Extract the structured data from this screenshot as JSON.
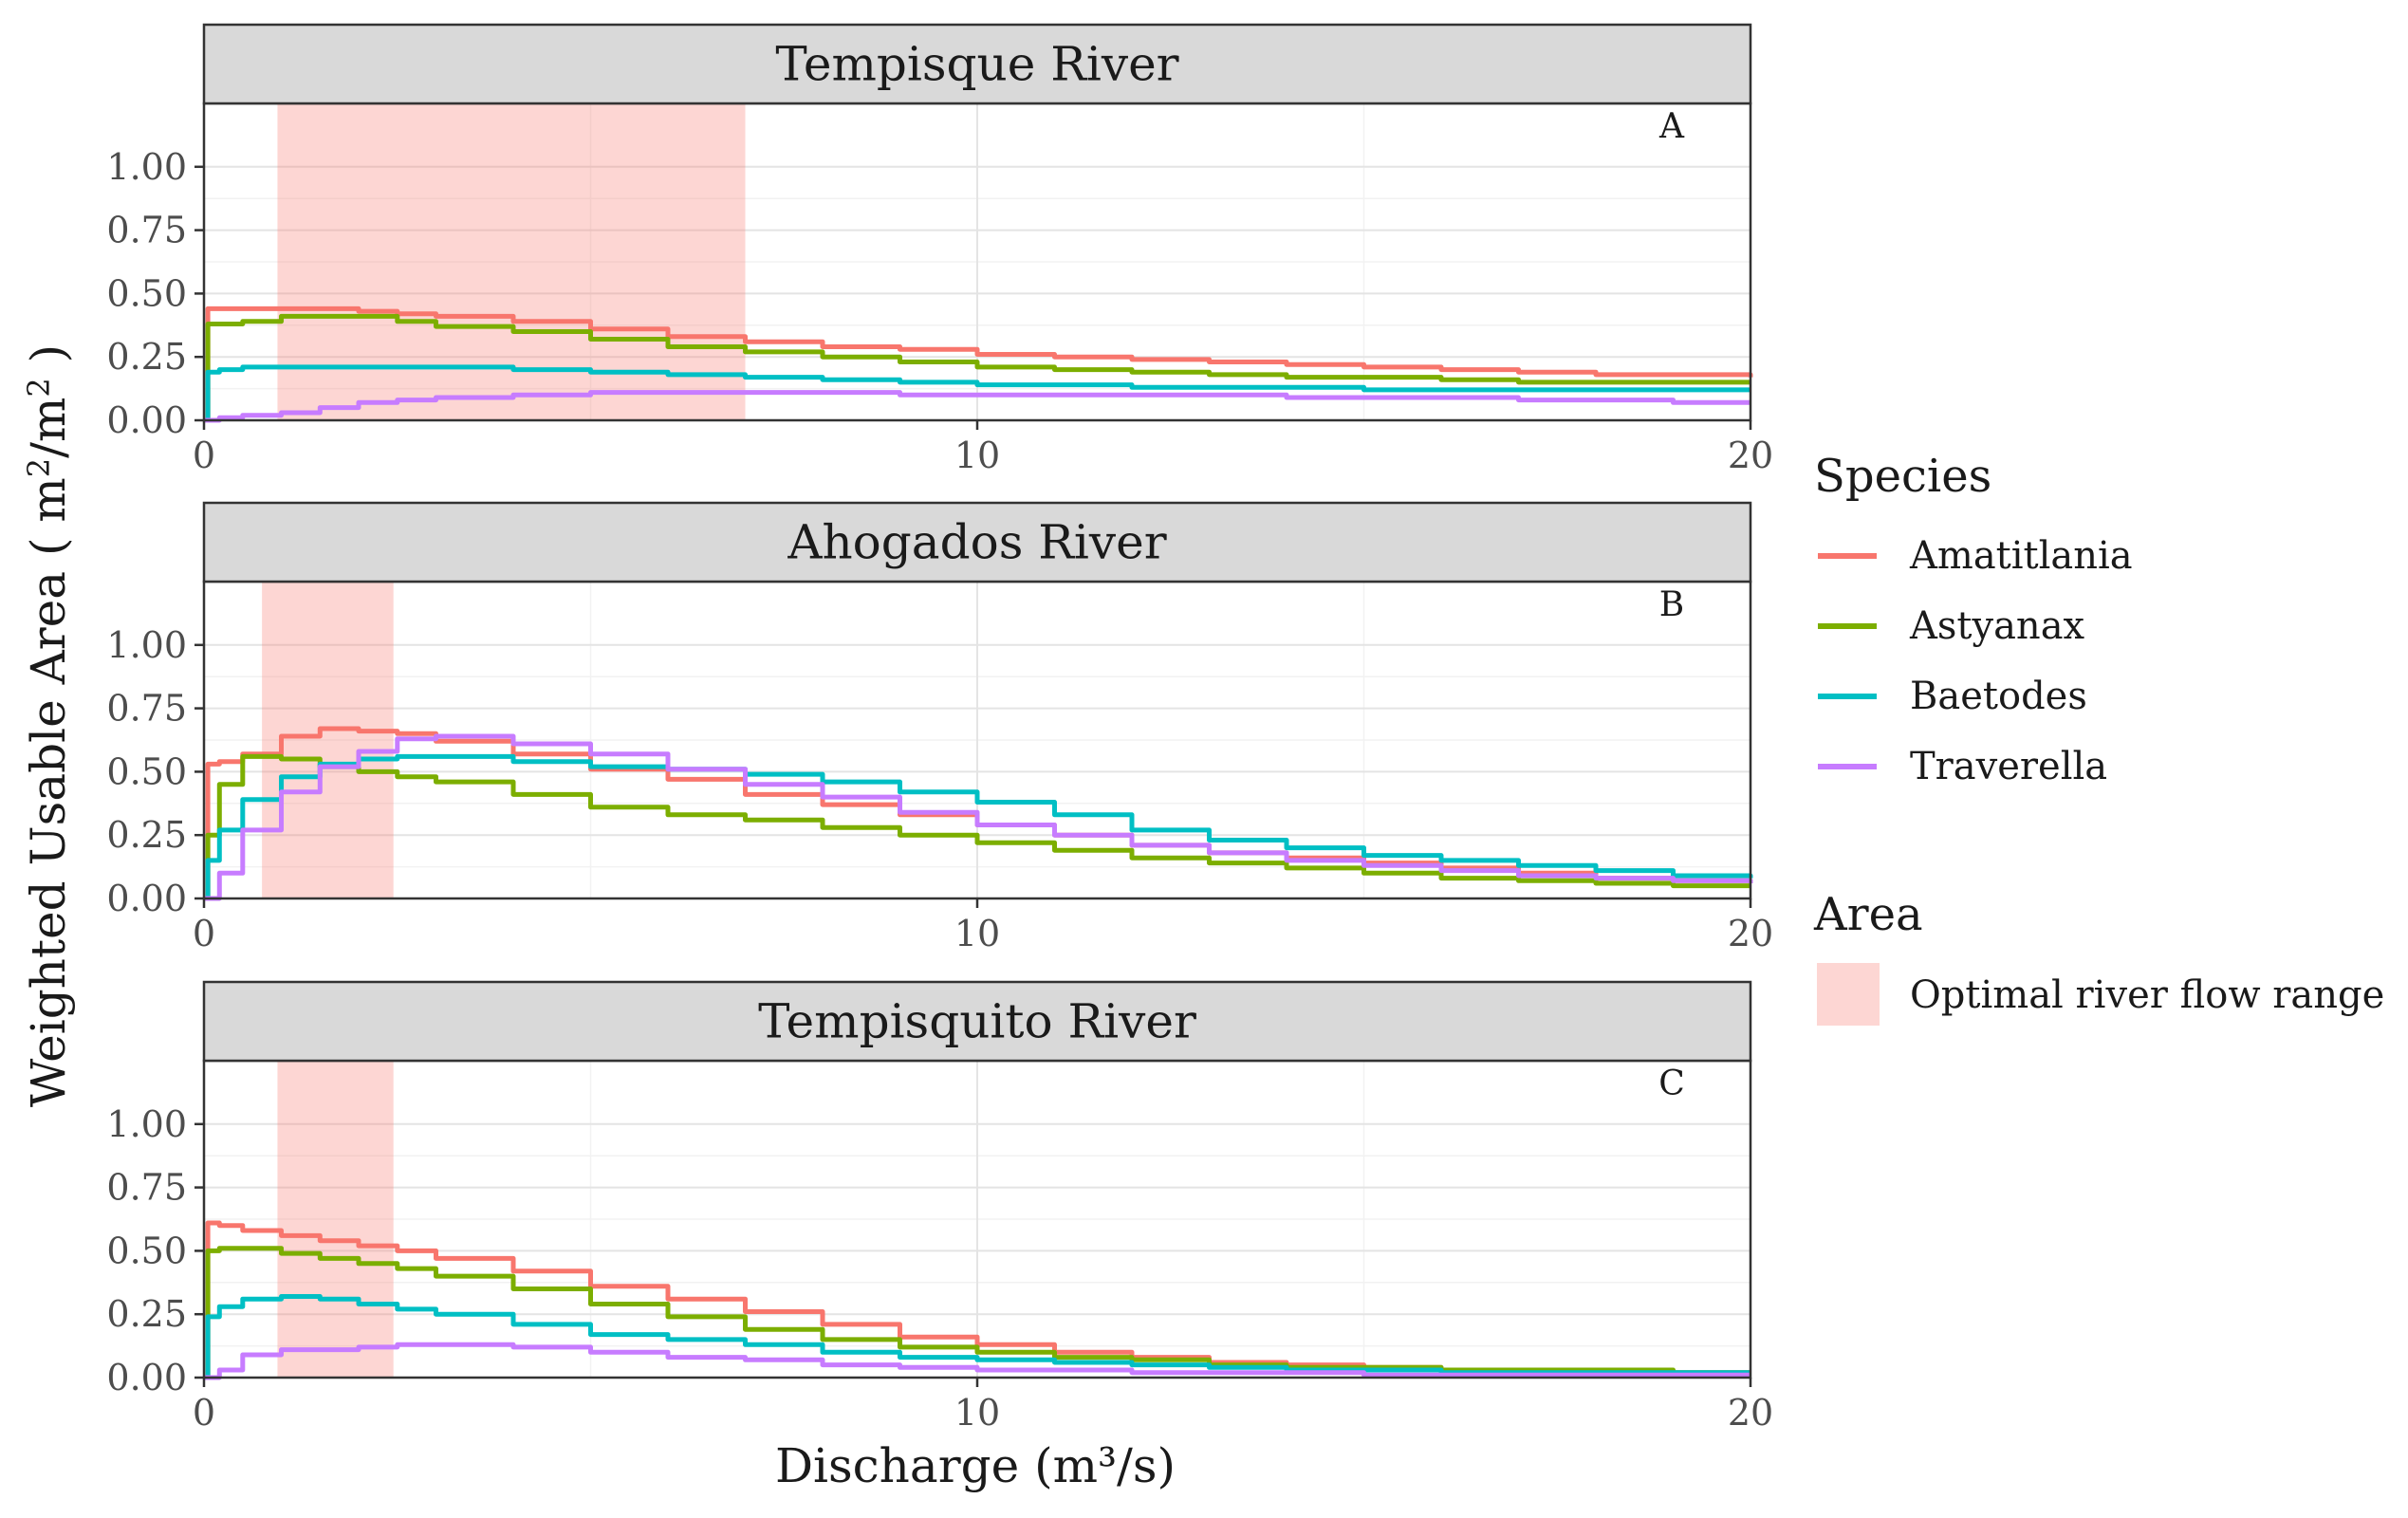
{
  "chart_data": [
    {
      "type": "line",
      "panel": "A",
      "title": "Tempisque River",
      "x": [
        0,
        0.05,
        0.2,
        0.5,
        1,
        1.5,
        2,
        2.5,
        3,
        4,
        5,
        6,
        7,
        8,
        9,
        10,
        11,
        12,
        13,
        14,
        15,
        16,
        17,
        18,
        19,
        20
      ],
      "series": [
        {
          "name": "Amatitlania",
          "values": [
            0.0,
            0.44,
            0.44,
            0.44,
            0.44,
            0.44,
            0.43,
            0.42,
            0.41,
            0.39,
            0.36,
            0.33,
            0.31,
            0.29,
            0.28,
            0.26,
            0.25,
            0.24,
            0.23,
            0.22,
            0.21,
            0.2,
            0.19,
            0.18,
            0.18,
            0.17
          ]
        },
        {
          "name": "Astyanax",
          "values": [
            0.0,
            0.38,
            0.38,
            0.39,
            0.41,
            0.41,
            0.41,
            0.39,
            0.37,
            0.35,
            0.32,
            0.29,
            0.27,
            0.25,
            0.23,
            0.21,
            0.2,
            0.19,
            0.18,
            0.17,
            0.17,
            0.16,
            0.15,
            0.15,
            0.15,
            0.15
          ]
        },
        {
          "name": "Baetodes",
          "values": [
            0.0,
            0.19,
            0.2,
            0.21,
            0.21,
            0.21,
            0.21,
            0.21,
            0.21,
            0.2,
            0.19,
            0.18,
            0.17,
            0.16,
            0.15,
            0.14,
            0.14,
            0.13,
            0.13,
            0.13,
            0.12,
            0.12,
            0.12,
            0.12,
            0.12,
            0.12
          ]
        },
        {
          "name": "Traverella",
          "values": [
            0.0,
            0.0,
            0.01,
            0.02,
            0.03,
            0.05,
            0.07,
            0.08,
            0.09,
            0.1,
            0.11,
            0.11,
            0.11,
            0.11,
            0.1,
            0.1,
            0.1,
            0.1,
            0.1,
            0.09,
            0.09,
            0.09,
            0.08,
            0.08,
            0.07,
            0.07
          ]
        }
      ],
      "area": {
        "name": "Optimal river flow range",
        "x_range": [
          0.95,
          7.0
        ]
      },
      "xlim": [
        0,
        20
      ],
      "ylim": [
        0,
        1.25
      ],
      "xticks": [
        "0",
        "10",
        "20"
      ],
      "yticks": [
        "0.00",
        "0.25",
        "0.50",
        "0.75",
        "1.00"
      ]
    },
    {
      "type": "line",
      "panel": "B",
      "title": "Ahogados River",
      "x": [
        0,
        0.05,
        0.2,
        0.5,
        1,
        1.5,
        2,
        2.5,
        3,
        4,
        5,
        6,
        7,
        8,
        9,
        10,
        11,
        12,
        13,
        14,
        15,
        16,
        17,
        18,
        19,
        20
      ],
      "series": [
        {
          "name": "Amatitlania",
          "values": [
            0.0,
            0.53,
            0.54,
            0.57,
            0.64,
            0.67,
            0.66,
            0.65,
            0.62,
            0.57,
            0.51,
            0.47,
            0.41,
            0.37,
            0.33,
            0.29,
            0.25,
            0.21,
            0.18,
            0.16,
            0.14,
            0.12,
            0.1,
            0.08,
            0.07,
            0.06
          ]
        },
        {
          "name": "Astyanax",
          "values": [
            0.0,
            0.25,
            0.45,
            0.56,
            0.55,
            0.52,
            0.5,
            0.48,
            0.46,
            0.41,
            0.36,
            0.33,
            0.31,
            0.28,
            0.25,
            0.22,
            0.19,
            0.16,
            0.14,
            0.12,
            0.1,
            0.08,
            0.07,
            0.06,
            0.05,
            0.05
          ]
        },
        {
          "name": "Baetodes",
          "values": [
            0.0,
            0.15,
            0.27,
            0.39,
            0.48,
            0.53,
            0.55,
            0.56,
            0.56,
            0.54,
            0.52,
            0.51,
            0.49,
            0.46,
            0.42,
            0.38,
            0.33,
            0.27,
            0.23,
            0.2,
            0.17,
            0.15,
            0.13,
            0.11,
            0.09,
            0.08
          ]
        },
        {
          "name": "Traverella",
          "values": [
            0.0,
            0.0,
            0.1,
            0.27,
            0.42,
            0.52,
            0.58,
            0.63,
            0.64,
            0.61,
            0.57,
            0.51,
            0.45,
            0.4,
            0.34,
            0.29,
            0.25,
            0.21,
            0.18,
            0.15,
            0.13,
            0.11,
            0.09,
            0.08,
            0.07,
            0.06
          ]
        }
      ],
      "area": {
        "name": "Optimal river flow range",
        "x_range": [
          0.75,
          2.45
        ]
      },
      "xlim": [
        0,
        20
      ],
      "ylim": [
        0,
        1.25
      ],
      "xticks": [
        "0",
        "10",
        "20"
      ],
      "yticks": [
        "0.00",
        "0.25",
        "0.50",
        "0.75",
        "1.00"
      ]
    },
    {
      "type": "line",
      "panel": "C",
      "title": "Tempisquito River",
      "x": [
        0,
        0.05,
        0.2,
        0.5,
        1,
        1.5,
        2,
        2.5,
        3,
        4,
        5,
        6,
        7,
        8,
        9,
        10,
        11,
        12,
        13,
        14,
        15,
        16,
        17,
        18,
        19,
        20
      ],
      "series": [
        {
          "name": "Amatitlania",
          "values": [
            0.0,
            0.61,
            0.6,
            0.58,
            0.56,
            0.54,
            0.52,
            0.5,
            0.47,
            0.42,
            0.36,
            0.31,
            0.26,
            0.21,
            0.16,
            0.13,
            0.1,
            0.08,
            0.06,
            0.05,
            0.04,
            0.03,
            0.03,
            0.02,
            0.02,
            0.02
          ]
        },
        {
          "name": "Astyanax",
          "values": [
            0.0,
            0.5,
            0.51,
            0.51,
            0.49,
            0.47,
            0.45,
            0.43,
            0.4,
            0.35,
            0.29,
            0.24,
            0.19,
            0.15,
            0.12,
            0.1,
            0.08,
            0.07,
            0.05,
            0.04,
            0.04,
            0.03,
            0.03,
            0.03,
            0.02,
            0.02
          ]
        },
        {
          "name": "Baetodes",
          "values": [
            0.0,
            0.24,
            0.28,
            0.31,
            0.32,
            0.31,
            0.29,
            0.27,
            0.25,
            0.21,
            0.17,
            0.15,
            0.13,
            0.1,
            0.08,
            0.07,
            0.06,
            0.05,
            0.04,
            0.03,
            0.03,
            0.02,
            0.02,
            0.02,
            0.02,
            0.02
          ]
        },
        {
          "name": "Traverella",
          "values": [
            0.0,
            0.0,
            0.03,
            0.09,
            0.11,
            0.11,
            0.12,
            0.13,
            0.13,
            0.12,
            0.1,
            0.08,
            0.07,
            0.05,
            0.04,
            0.03,
            0.03,
            0.02,
            0.02,
            0.02,
            0.01,
            0.01,
            0.01,
            0.01,
            0.01,
            0.01
          ]
        }
      ],
      "area": {
        "name": "Optimal river flow range",
        "x_range": [
          0.95,
          2.45
        ]
      },
      "xlim": [
        0,
        20
      ],
      "ylim": [
        0,
        1.25
      ],
      "xticks": [
        "0",
        "10",
        "20"
      ],
      "yticks": [
        "0.00",
        "0.25",
        "0.50",
        "0.75",
        "1.00"
      ]
    }
  ],
  "axes": {
    "xlabel": "Discharge (m³/s)",
    "ylabel_prefix": "Weighted Usable Area (  m",
    "ylabel_sup1": "2",
    "ylabel_mid": "/m",
    "ylabel_sup2": "2",
    "ylabel_suffix": " )"
  },
  "legend": {
    "species_title": "Species",
    "species": [
      {
        "name": "Amatitlania",
        "color": "#f8766d"
      },
      {
        "name": "Astyanax",
        "color": "#7cae00"
      },
      {
        "name": "Baetodes",
        "color": "#00bfc4"
      },
      {
        "name": "Traverella",
        "color": "#c77cff"
      }
    ],
    "area_title": "Area",
    "area_label": "Optimal river flow range",
    "area_color": "#f8766d"
  }
}
